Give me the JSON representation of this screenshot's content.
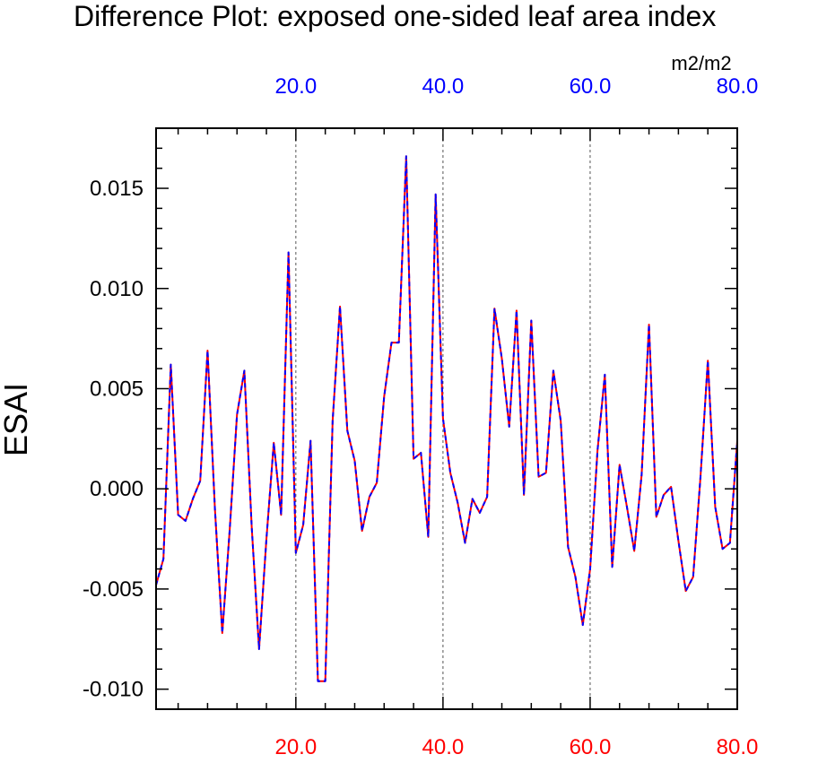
{
  "chart_data": {
    "type": "line",
    "title": "Difference Plot: exposed one-sided leaf area index",
    "units": "m2/m2",
    "ylabel": "ESAI",
    "xlabel": "",
    "xlim": [
      1,
      80
    ],
    "ylim": [
      -0.011,
      0.018
    ],
    "x_ticks_top": [
      "20.0",
      "40.0",
      "60.0",
      "80.0"
    ],
    "x_ticks_bottom": [
      "20.0",
      "40.0",
      "60.0",
      "80.0"
    ],
    "x_tick_values": [
      20,
      40,
      60,
      80
    ],
    "y_ticks": [
      "-0.010",
      "-0.005",
      "0.000",
      "0.005",
      "0.010",
      "0.015"
    ],
    "y_tick_values": [
      -0.01,
      -0.005,
      0,
      0.005,
      0.01,
      0.015
    ],
    "x_grid": "dashed vertical at major ticks",
    "series": [
      {
        "name": "red",
        "color": "#ff0000",
        "style": "solid",
        "x": [
          1,
          2,
          3,
          4,
          5,
          6,
          7,
          8,
          9,
          10,
          11,
          12,
          13,
          14,
          15,
          16,
          17,
          18,
          19,
          20,
          21,
          22,
          23,
          24,
          25,
          26,
          27,
          28,
          29,
          30,
          31,
          32,
          33,
          34,
          35,
          36,
          37,
          38,
          39,
          40,
          41,
          42,
          43,
          44,
          45,
          46,
          47,
          48,
          49,
          50,
          51,
          52,
          53,
          54,
          55,
          56,
          57,
          58,
          59,
          60,
          61,
          62,
          63,
          64,
          65,
          66,
          67,
          68,
          69,
          70,
          71,
          72,
          73,
          74,
          75,
          76,
          77,
          78,
          79,
          80
        ],
        "values": [
          -0.0048,
          -0.0035,
          0.0062,
          -0.0013,
          -0.0016,
          -0.0005,
          0.0004,
          0.0069,
          -0.001,
          -0.0072,
          -0.0021,
          0.0037,
          0.0059,
          -0.0019,
          -0.008,
          -0.0025,
          0.0023,
          -0.0013,
          0.0118,
          -0.0032,
          -0.0018,
          0.0024,
          -0.0096,
          -0.0096,
          0.0034,
          0.0091,
          0.0029,
          0.0014,
          -0.0021,
          -0.0004,
          0.0003,
          0.0046,
          0.0073,
          0.0073,
          0.0166,
          0.0015,
          0.0018,
          -0.0024,
          0.0147,
          0.0035,
          0.0008,
          -0.0007,
          -0.0027,
          -0.0005,
          -0.0012,
          -0.0004,
          0.009,
          0.0065,
          0.0031,
          0.0089,
          -0.0003,
          0.0084,
          0.0006,
          0.0008,
          0.0059,
          0.0034,
          -0.0029,
          -0.0044,
          -0.0068,
          -0.004,
          0.0019,
          0.0057,
          -0.0039,
          0.0012,
          -0.0009,
          -0.0031,
          0.0007,
          0.0082,
          -0.0014,
          -0.0003,
          0.0001,
          -0.0026,
          -0.0051,
          -0.0044,
          0.0006,
          0.0064,
          -0.0009,
          -0.003,
          -0.0027,
          0.0024
        ]
      },
      {
        "name": "blue",
        "color": "#0000ff",
        "style": "dashed",
        "x": [
          1,
          2,
          3,
          4,
          5,
          6,
          7,
          8,
          9,
          10,
          11,
          12,
          13,
          14,
          15,
          16,
          17,
          18,
          19,
          20,
          21,
          22,
          23,
          24,
          25,
          26,
          27,
          28,
          29,
          30,
          31,
          32,
          33,
          34,
          35,
          36,
          37,
          38,
          39,
          40,
          41,
          42,
          43,
          44,
          45,
          46,
          47,
          48,
          49,
          50,
          51,
          52,
          53,
          54,
          55,
          56,
          57,
          58,
          59,
          60,
          61,
          62,
          63,
          64,
          65,
          66,
          67,
          68,
          69,
          70,
          71,
          72,
          73,
          74,
          75,
          76,
          77,
          78,
          79,
          80
        ],
        "values": [
          -0.0048,
          -0.0035,
          0.0062,
          -0.0013,
          -0.0016,
          -0.0005,
          0.0004,
          0.0069,
          -0.001,
          -0.0072,
          -0.0021,
          0.0037,
          0.0059,
          -0.0019,
          -0.008,
          -0.0025,
          0.0023,
          -0.0013,
          0.0118,
          -0.0032,
          -0.0018,
          0.0024,
          -0.0096,
          -0.0096,
          0.0034,
          0.0091,
          0.0029,
          0.0014,
          -0.0021,
          -0.0004,
          0.0003,
          0.0046,
          0.0073,
          0.0073,
          0.0166,
          0.0015,
          0.0018,
          -0.0024,
          0.0147,
          0.0035,
          0.0008,
          -0.0007,
          -0.0027,
          -0.0005,
          -0.0012,
          -0.0004,
          0.009,
          0.0065,
          0.0031,
          0.0089,
          -0.0003,
          0.0084,
          0.0006,
          0.0008,
          0.0059,
          0.0034,
          -0.0029,
          -0.0044,
          -0.0068,
          -0.004,
          0.0019,
          0.0057,
          -0.0039,
          0.0012,
          -0.0009,
          -0.0031,
          0.0007,
          0.0082,
          -0.0014,
          -0.0003,
          0.0001,
          -0.0026,
          -0.0051,
          -0.0044,
          0.0006,
          0.0064,
          -0.0009,
          -0.003,
          -0.0027,
          0.0024
        ]
      }
    ]
  }
}
